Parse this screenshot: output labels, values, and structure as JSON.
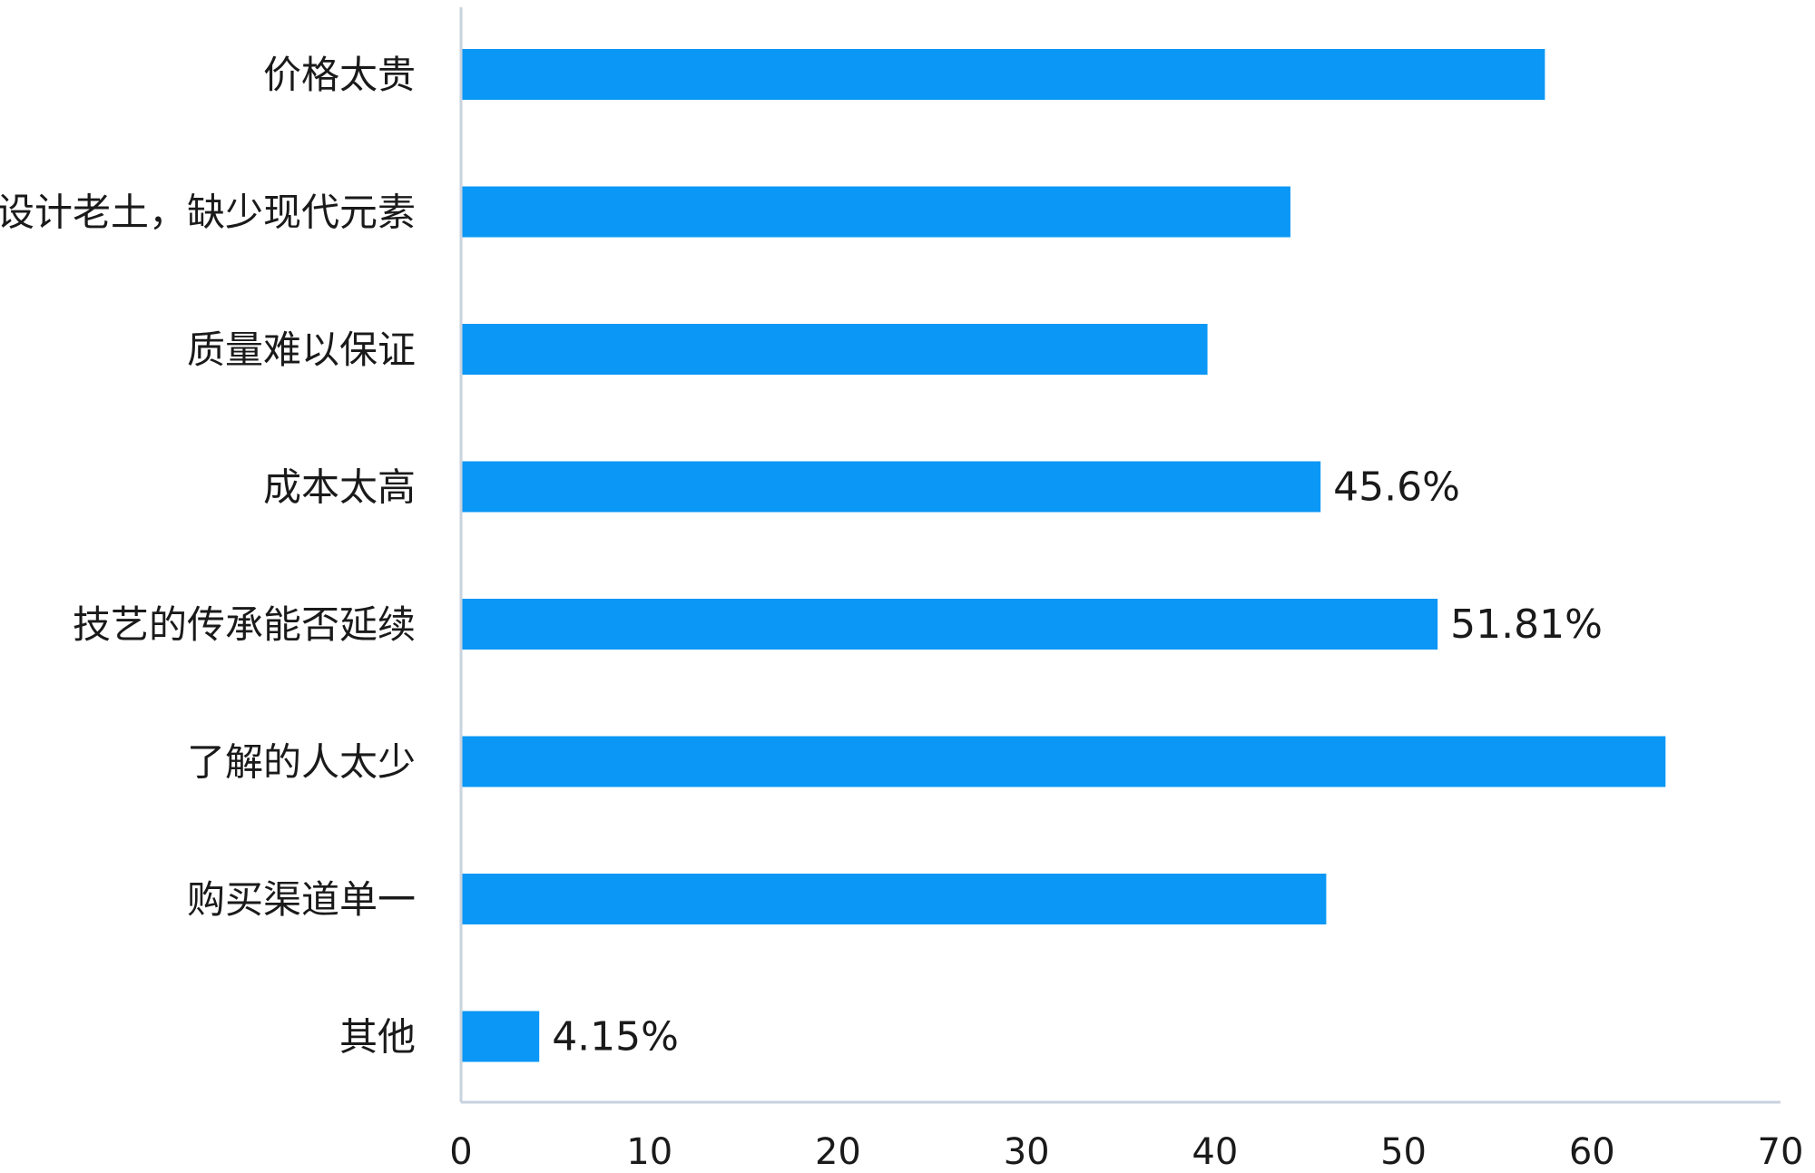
{
  "chart_data": {
    "type": "bar",
    "orientation": "horizontal",
    "categories": [
      "价格太贵",
      "设计老土，缺少现代元素",
      "质量难以保证",
      "成本太高",
      "技艺的传承能否延续",
      "了解的人太少",
      "购买渠道单一",
      "其他"
    ],
    "values": [
      57.5,
      44,
      39.6,
      45.6,
      51.81,
      63.9,
      45.9,
      4.15
    ],
    "data_labels": [
      "",
      "",
      "",
      "45.6%",
      "51.81%",
      "",
      "",
      "4.15%"
    ],
    "xlim": [
      0,
      70
    ],
    "xticks": [
      0,
      10,
      20,
      30,
      40,
      50,
      60,
      70
    ],
    "grid": false,
    "bar_color": "#0a97f5",
    "title": "",
    "xlabel": "",
    "ylabel": ""
  }
}
